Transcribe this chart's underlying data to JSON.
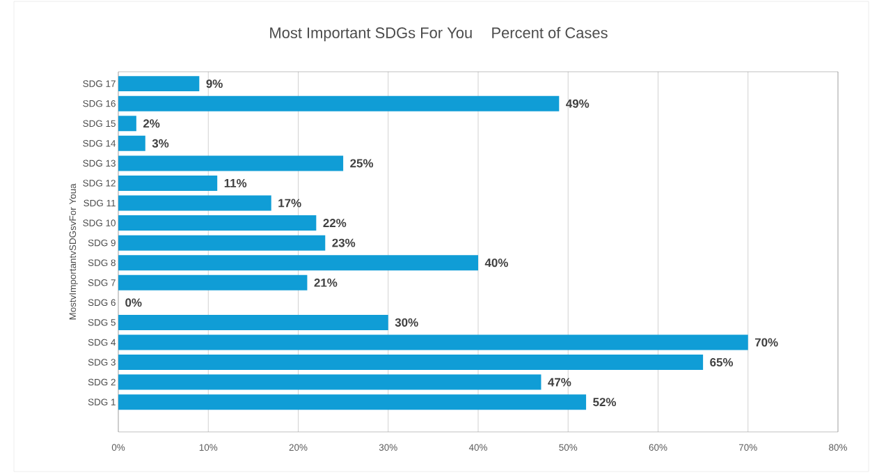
{
  "chart_data": {
    "type": "bar",
    "orientation": "horizontal",
    "title": "Most Important SDGs For You",
    "subtitle": "Percent of Cases",
    "ylabel": "MostvImportantvSDGsvFor Youa",
    "categories": [
      "SDG 17",
      "SDG 16",
      "SDG 15",
      "SDG 14",
      "SDG 13",
      "SDG 12",
      "SDG 11",
      "SDG 10",
      "SDG 9",
      "SDG 8",
      "SDG 7",
      "SDG 6",
      "SDG 5",
      "SDG 4",
      "SDG 3",
      "SDG 2",
      "SDG 1"
    ],
    "values": [
      9,
      49,
      2,
      3,
      25,
      11,
      17,
      22,
      23,
      40,
      21,
      0,
      30,
      70,
      65,
      47,
      52
    ],
    "value_labels": [
      "9%",
      "49%",
      "2%",
      "3%",
      "25%",
      "11%",
      "17%",
      "22%",
      "23%",
      "40%",
      "21%",
      "0%",
      "30%",
      "70%",
      "65%",
      "47%",
      "52%"
    ],
    "color": "#109dd6",
    "xlim": [
      0,
      80
    ],
    "xticks": [
      {
        "value": 0,
        "label": "0%"
      },
      {
        "value": 10,
        "label": "10%"
      },
      {
        "value": 20,
        "label": "20%"
      },
      {
        "value": 30,
        "label": "30%"
      },
      {
        "value": 40,
        "label": "40%"
      },
      {
        "value": 50,
        "label": "50%"
      },
      {
        "value": 60,
        "label": "60%"
      },
      {
        "value": 70,
        "label": "70%"
      },
      {
        "value": 80,
        "label": "80%"
      }
    ],
    "grid": "x"
  }
}
